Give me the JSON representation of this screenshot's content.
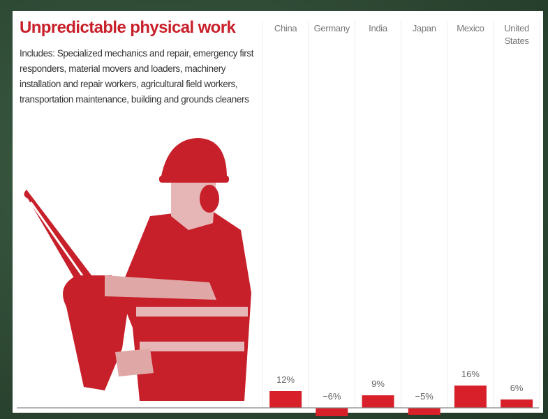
{
  "chart_data": {
    "type": "bar",
    "title": "Unpredictable physical work",
    "subtitle": "Includes: Specialized mechanics and repair, emergency first responders, material movers and loaders, machinery installation and repair workers, agricultural field workers, transportation maintenance, building and grounds cleaners",
    "categories": [
      "China",
      "Germany",
      "India",
      "Japan",
      "Mexico",
      "United States"
    ],
    "values": [
      12,
      -6,
      9,
      -5,
      16,
      6
    ],
    "value_labels": [
      "12%",
      "−6%",
      "9%",
      "−5%",
      "16%",
      "6%"
    ],
    "color": "#d7202a"
  }
}
